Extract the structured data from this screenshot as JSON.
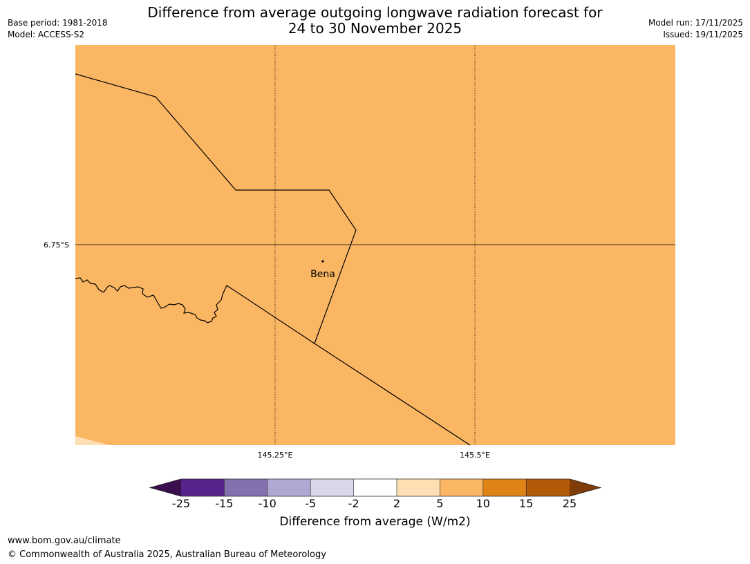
{
  "title_line1": "Difference from average outgoing longwave radiation forecast for",
  "title_line2": "24 to 30 November 2025",
  "base_period": "Base period: 1981-2018",
  "model": "Model: ACCESS-S2",
  "model_run": "Model run: 17/11/2025",
  "issued": "Issued: 19/11/2025",
  "map": {
    "latitude_label": "6.75°S",
    "longitude_labels": [
      "145.25°E",
      "145.5°E"
    ],
    "place": "Bena",
    "fill_category": "5 to 10",
    "colors": {
      "fill": "#FAB663",
      "corner_fill": "#FEDFB3",
      "border_line": "#000000",
      "grid_line": "#000000"
    }
  },
  "colorbar": {
    "title": "Difference from average (W/m2)",
    "ticks": [
      "-25",
      "-15",
      "-10",
      "-5",
      "-2",
      "2",
      "5",
      "10",
      "15",
      "25"
    ],
    "colors": [
      "#3B0F4E",
      "#56238A",
      "#8470AF",
      "#B0A8D2",
      "#D9D8EA",
      "#FFFFFF",
      "#FEDFB3",
      "#FAB663",
      "#E08316",
      "#B15A08",
      "#7F3B08"
    ]
  },
  "footer": {
    "url": "www.bom.gov.au/climate",
    "copyright": "© Commonwealth of Australia 2025, Australian Bureau of Meteorology"
  }
}
